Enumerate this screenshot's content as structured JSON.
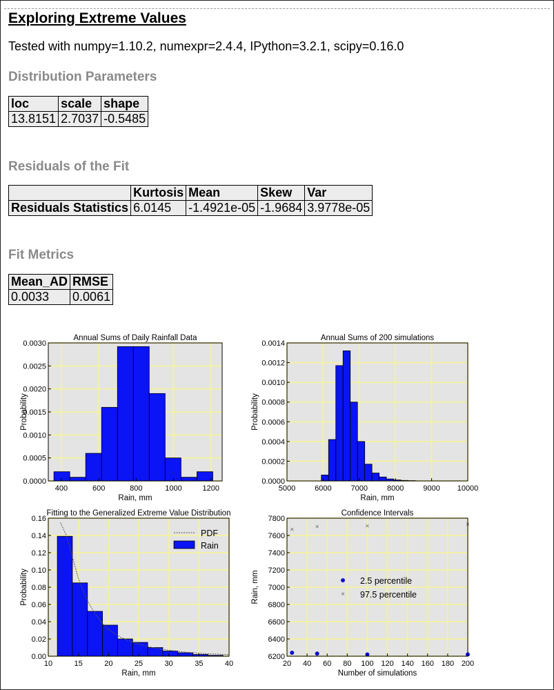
{
  "page": {
    "title": "Exploring Extreme Values",
    "tested_line": "Tested with numpy=1.10.2, numexpr=2.4.4, IPython=3.2.1, scipy=0.16.0"
  },
  "sections": {
    "distribution": {
      "heading": "Distribution Parameters",
      "columns": [
        "loc",
        "scale",
        "shape"
      ],
      "values": [
        "13.8151",
        "2.7037",
        "-0.5485"
      ]
    },
    "residuals": {
      "heading": "Residuals of the Fit",
      "columns": [
        "Kurtosis",
        "Mean",
        "Skew",
        "Var"
      ],
      "row_label": "Residuals Statistics",
      "values": [
        "6.0145",
        "-1.4921e-05",
        "-1.9684",
        "3.9778e-05"
      ]
    },
    "fit_metrics": {
      "heading": "Fit Metrics",
      "columns": [
        "Mean_AD",
        "RMSE"
      ],
      "values": [
        "0.0033",
        "0.0061"
      ]
    }
  },
  "colors": {
    "bar": "#0a14f5",
    "plot_bg": "#e4e4e4",
    "grid": "#f3f0a6",
    "heading_gray": "#8a8a8a"
  },
  "chart_data": [
    {
      "type": "bar",
      "title": "Annual Sums of Daily Rainfall Data",
      "xlabel": "Rain, mm",
      "ylabel": "Probability",
      "xlim": [
        330,
        1260
      ],
      "ylim": [
        0,
        0.003
      ],
      "xticks": [
        "400",
        "600",
        "800",
        "1000",
        "1200"
      ],
      "yticks": [
        "0.0000",
        "0.0005",
        "0.0010",
        "0.0015",
        "0.0020",
        "0.0025",
        "0.0030"
      ],
      "bins": [
        [
          360,
          445,
          0.0002
        ],
        [
          445,
          530,
          8e-05
        ],
        [
          530,
          615,
          0.0006
        ],
        [
          615,
          700,
          0.0016
        ],
        [
          700,
          785,
          0.00292
        ],
        [
          785,
          870,
          0.00292
        ],
        [
          870,
          955,
          0.0019
        ],
        [
          955,
          1040,
          0.0005
        ],
        [
          1040,
          1125,
          8e-05
        ],
        [
          1125,
          1210,
          0.0002
        ]
      ],
      "grid": true
    },
    {
      "type": "bar",
      "title": "Annual Sums of 200 simulations",
      "xlabel": "Rain, mm",
      "ylabel": "Probability",
      "xlim": [
        5000,
        10000
      ],
      "ylim": [
        0,
        0.0014
      ],
      "xticks": [
        "5000",
        "6000",
        "7000",
        "8000",
        "9000",
        "10000"
      ],
      "yticks": [
        "0.0000",
        "0.0002",
        "0.0004",
        "0.0006",
        "0.0008",
        "0.0010",
        "0.0012",
        "0.0014"
      ],
      "bins": [
        [
          5950,
          6150,
          6e-05
        ],
        [
          6150,
          6350,
          0.00042
        ],
        [
          6350,
          6550,
          0.00117
        ],
        [
          6550,
          6750,
          0.00132
        ],
        [
          6750,
          6950,
          0.0008
        ],
        [
          6950,
          7150,
          0.0004
        ],
        [
          7150,
          7350,
          0.00017
        ],
        [
          7350,
          7550,
          8e-05
        ],
        [
          7550,
          7750,
          4e-05
        ],
        [
          7750,
          7950,
          2e-05
        ],
        [
          7950,
          8150,
          1e-05
        ],
        [
          8150,
          8350,
          5e-06
        ],
        [
          8350,
          8550,
          3e-06
        ],
        [
          8550,
          9800,
          1e-06
        ]
      ],
      "grid": true
    },
    {
      "type": "bar",
      "title": "Fitting to the Generalized Extreme Value Distribution",
      "xlabel": "Rain, mm",
      "ylabel": "Probability",
      "xlim": [
        10,
        40
      ],
      "ylim": [
        0,
        0.16
      ],
      "xticks": [
        "10",
        "15",
        "20",
        "25",
        "30",
        "35",
        "40"
      ],
      "yticks": [
        "0.00",
        "0.02",
        "0.04",
        "0.06",
        "0.08",
        "0.10",
        "0.12",
        "0.14",
        "0.16"
      ],
      "bins": [
        [
          11.5,
          14.0,
          0.139
        ],
        [
          14.0,
          16.5,
          0.085
        ],
        [
          16.5,
          19.0,
          0.052
        ],
        [
          19.0,
          21.5,
          0.036
        ],
        [
          21.5,
          24.0,
          0.02
        ],
        [
          24.0,
          26.5,
          0.016
        ],
        [
          26.5,
          29.0,
          0.01
        ],
        [
          29.0,
          31.5,
          0.006
        ],
        [
          31.5,
          34.0,
          0.004
        ],
        [
          34.0,
          36.5,
          0.002
        ],
        [
          36.5,
          39.0,
          0.001
        ]
      ],
      "pdf": [
        [
          12,
          0.155
        ],
        [
          13,
          0.14
        ],
        [
          14,
          0.115
        ],
        [
          15,
          0.09
        ],
        [
          16,
          0.072
        ],
        [
          17,
          0.058
        ],
        [
          18,
          0.047
        ],
        [
          19,
          0.038
        ],
        [
          20,
          0.031
        ],
        [
          22,
          0.022
        ],
        [
          24,
          0.016
        ],
        [
          26,
          0.012
        ],
        [
          28,
          0.009
        ],
        [
          30,
          0.007
        ],
        [
          33,
          0.0045
        ],
        [
          36,
          0.003
        ],
        [
          40,
          0.0018
        ]
      ],
      "legend": [
        "PDF",
        "Rain"
      ],
      "grid": true
    },
    {
      "type": "scatter",
      "title": "Confidence Intervals",
      "xlabel": "Number of simulations",
      "ylabel": "Rain, mm",
      "xlim": [
        20,
        200
      ],
      "ylim": [
        6200,
        7800
      ],
      "xticks": [
        "20",
        "40",
        "60",
        "80",
        "100",
        "120",
        "140",
        "160",
        "180",
        "200"
      ],
      "yticks": [
        "6200",
        "6400",
        "6600",
        "6800",
        "7000",
        "7200",
        "7400",
        "7600",
        "7800"
      ],
      "series": [
        {
          "name": "2.5 percentile",
          "x": [
            25,
            50,
            100,
            200
          ],
          "y": [
            6240,
            6230,
            6220,
            6220
          ]
        },
        {
          "name": "97.5 percentile",
          "x": [
            25,
            50,
            100,
            200
          ],
          "y": [
            7670,
            7700,
            7710,
            7730
          ]
        }
      ],
      "grid": true
    }
  ]
}
